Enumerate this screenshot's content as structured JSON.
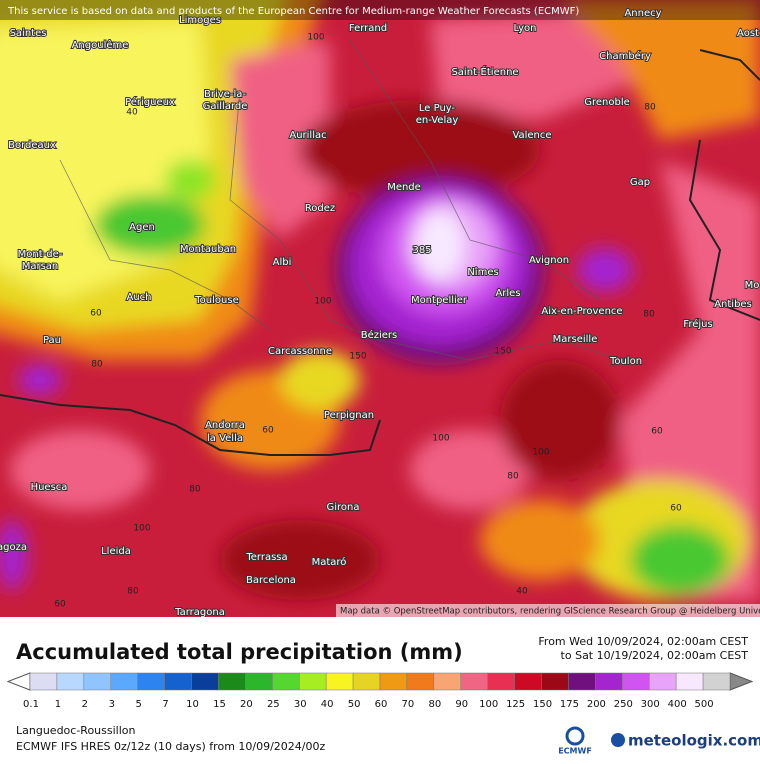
{
  "map": {
    "notice": "This service is based on data and products of the European Centre for Medium-range Weather Forecasts (ECMWF)",
    "attribution": "Map data © OpenStreetMap contributors, rendering GIScience Research Group @ Heidelberg University",
    "cities": [
      "Saintes",
      "Angoulême",
      "Limoges",
      "Ferrand",
      "Lyon",
      "Annecy",
      "Aost",
      "Chambéry",
      "Saint-Étienne",
      "Grenoble",
      "Périgueux",
      "Brive-la-",
      "Gaillarde",
      "Le Puy-",
      "en-Velay",
      "Aurillac",
      "Valence",
      "Bordeaux",
      "Gap",
      "Mende",
      "Rodez",
      "Agen",
      "Montauban",
      "Albi",
      "Mont-de-",
      "Marsan",
      "Nîmes",
      "Avignon",
      "Auch",
      "Toulouse",
      "Montpellier",
      "Arles",
      "Aix-en-Provence",
      "Antibes",
      "Fréjus",
      "Mo",
      "Pau",
      "Béziers",
      "Carcassonne",
      "Marseille",
      "Toulon",
      "Perpignan",
      "Andorra",
      "la Vella",
      "Huesca",
      "Girona",
      "Lleida",
      "agoza",
      "Terrassa",
      "Mataró",
      "Barcelona",
      "Tarragona"
    ],
    "contour_labels": [
      100,
      40,
      60,
      80,
      100,
      150,
      150,
      100,
      80,
      100,
      60,
      80,
      100,
      80,
      60,
      40,
      60,
      60,
      80,
      80,
      385
    ]
  },
  "footer": {
    "title": "Accumulated total precipitation (mm)",
    "period_from": "From Wed 10/09/2024, 02:00am CEST",
    "period_to": "to Sat 10/19/2024, 02:00am CEST",
    "region": "Languedoc-Roussillon",
    "model": "ECMWF IFS HRES 0z/12z (10 days) from  10/09/2024/00z",
    "logo_left": "ECMWF",
    "logo_right": "meteologix.com"
  },
  "legend": {
    "values": [
      0.1,
      1,
      2,
      3,
      5,
      7,
      10,
      15,
      20,
      25,
      30,
      40,
      50,
      60,
      70,
      80,
      90,
      100,
      125,
      150,
      175,
      200,
      250,
      300,
      400,
      500
    ],
    "colors": [
      "#dcdcf2",
      "#b8d8ff",
      "#90c4ff",
      "#5aa8ff",
      "#2c84f0",
      "#1462d0",
      "#0a3e9c",
      "#1a8a1a",
      "#2cb62c",
      "#54d830",
      "#a6ee22",
      "#f8f424",
      "#e6d424",
      "#f09a14",
      "#f07a1c",
      "#f8a474",
      "#f06484",
      "#e83052",
      "#cc0a24",
      "#9c0816",
      "#70107e",
      "#a424d0",
      "#d054f0",
      "#e8a4f8",
      "#f8e8ff",
      "#d2d2d2"
    ]
  }
}
